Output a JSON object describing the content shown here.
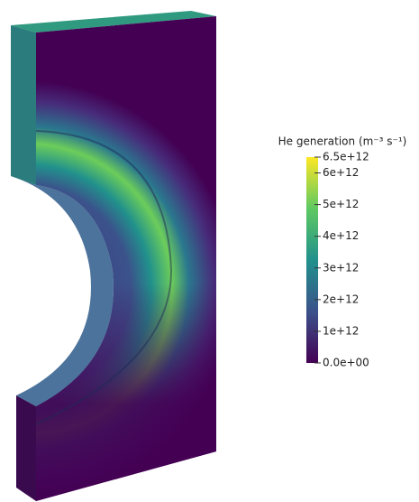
{
  "chart_data": {
    "type": "colorbar",
    "title": "He generation (m⁻³ s⁻¹)",
    "colormap": [
      "#440154",
      "#3b528b",
      "#21918c",
      "#5ec962",
      "#fde725"
    ],
    "ylim": [
      0,
      6500000000000
    ],
    "yticks": [
      {
        "value": 0,
        "label": "0.0e+00"
      },
      {
        "value": 1000000000000,
        "label": "1e+12"
      },
      {
        "value": 2000000000000,
        "label": "2e+12"
      },
      {
        "value": 3000000000000,
        "label": "3e+12"
      },
      {
        "value": 4000000000000,
        "label": "4e+12"
      },
      {
        "value": 5000000000000,
        "label": "5e+12"
      },
      {
        "value": 6000000000000,
        "label": "6e+12"
      },
      {
        "value": 6500000000000,
        "label": "6.5e+12"
      }
    ]
  }
}
